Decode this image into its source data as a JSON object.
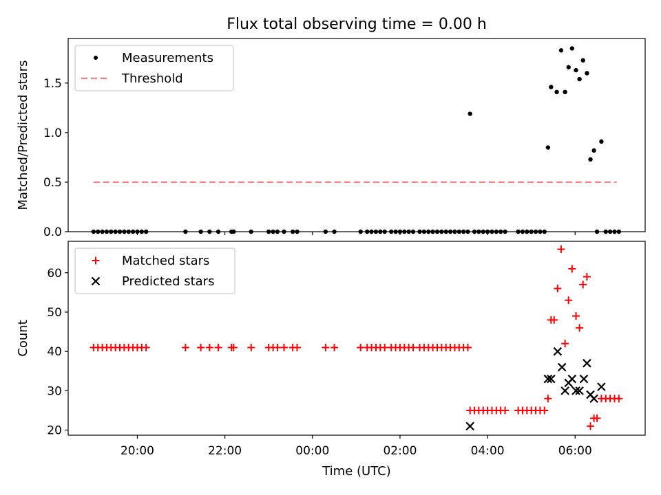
{
  "figure": {
    "title": "Flux total observing time = 0.00 h",
    "xlabel": "Time (UTC)",
    "x_tick_labels": [
      "20:00",
      "22:00",
      "00:00",
      "02:00",
      "04:00",
      "06:00"
    ],
    "x_tick_hours": [
      20,
      22,
      24,
      26,
      28,
      30
    ]
  },
  "chart_data": [
    {
      "type": "scatter",
      "panel": "top",
      "ylabel": "Matched/Predicted stars",
      "ylim": [
        0,
        1.95
      ],
      "xlim_hours": [
        18.42,
        31.6
      ],
      "y_ticks": [
        0.0,
        0.5,
        1.0,
        1.5
      ],
      "y_tick_labels": [
        "0.0",
        "0.5",
        "1.0",
        "1.5"
      ],
      "legend": {
        "placement": "upper-left",
        "entries": [
          "Measurements",
          "Threshold"
        ]
      },
      "series": [
        {
          "name": "Measurements",
          "marker": "dot",
          "color": "#000000",
          "points": [
            [
              19.0,
              0
            ],
            [
              19.1,
              0
            ],
            [
              19.2,
              0
            ],
            [
              19.3,
              0
            ],
            [
              19.4,
              0
            ],
            [
              19.5,
              0
            ],
            [
              19.6,
              0
            ],
            [
              19.7,
              0
            ],
            [
              19.8,
              0
            ],
            [
              19.9,
              0
            ],
            [
              20.0,
              0
            ],
            [
              20.1,
              0
            ],
            [
              20.2,
              0
            ],
            [
              21.1,
              0
            ],
            [
              21.45,
              0
            ],
            [
              21.65,
              0
            ],
            [
              21.85,
              0
            ],
            [
              22.15,
              0
            ],
            [
              22.2,
              0
            ],
            [
              22.6,
              0
            ],
            [
              23.0,
              0
            ],
            [
              23.1,
              0
            ],
            [
              23.2,
              0
            ],
            [
              23.35,
              0
            ],
            [
              23.55,
              0
            ],
            [
              23.65,
              0
            ],
            [
              24.3,
              0
            ],
            [
              24.5,
              0
            ],
            [
              25.1,
              0
            ],
            [
              25.25,
              0
            ],
            [
              25.35,
              0
            ],
            [
              25.45,
              0
            ],
            [
              25.55,
              0
            ],
            [
              25.65,
              0
            ],
            [
              25.8,
              0
            ],
            [
              25.9,
              0
            ],
            [
              26.0,
              0
            ],
            [
              26.1,
              0
            ],
            [
              26.2,
              0
            ],
            [
              26.3,
              0
            ],
            [
              26.45,
              0
            ],
            [
              26.55,
              0
            ],
            [
              26.65,
              0
            ],
            [
              26.75,
              0
            ],
            [
              26.85,
              0
            ],
            [
              26.95,
              0
            ],
            [
              27.05,
              0
            ],
            [
              27.15,
              0
            ],
            [
              27.25,
              0
            ],
            [
              27.35,
              0
            ],
            [
              27.45,
              0
            ],
            [
              27.55,
              0
            ],
            [
              27.6,
              1.19
            ],
            [
              27.7,
              0
            ],
            [
              27.8,
              0
            ],
            [
              27.9,
              0
            ],
            [
              28.0,
              0
            ],
            [
              28.1,
              0
            ],
            [
              28.2,
              0
            ],
            [
              28.3,
              0
            ],
            [
              28.4,
              0
            ],
            [
              28.7,
              0
            ],
            [
              28.8,
              0
            ],
            [
              28.9,
              0
            ],
            [
              29.0,
              0
            ],
            [
              29.1,
              0
            ],
            [
              29.2,
              0
            ],
            [
              29.3,
              0
            ],
            [
              29.38,
              0.85
            ],
            [
              29.45,
              1.46
            ],
            [
              29.58,
              1.41
            ],
            [
              29.68,
              1.83
            ],
            [
              29.77,
              1.41
            ],
            [
              29.85,
              1.66
            ],
            [
              29.93,
              1.85
            ],
            [
              30.02,
              1.63
            ],
            [
              30.1,
              1.54
            ],
            [
              30.18,
              1.73
            ],
            [
              30.27,
              1.6
            ],
            [
              30.35,
              0.73
            ],
            [
              30.43,
              0.82
            ],
            [
              30.6,
              0.91
            ],
            [
              30.5,
              0
            ],
            [
              30.7,
              0
            ],
            [
              30.8,
              0
            ],
            [
              30.9,
              0
            ],
            [
              31.0,
              0
            ]
          ]
        },
        {
          "name": "Threshold",
          "style": "dashed",
          "color": "#ff7f7f",
          "x": [
            19.0,
            30.95
          ],
          "y": [
            0.5,
            0.5
          ]
        }
      ]
    },
    {
      "type": "scatter",
      "panel": "bottom",
      "ylabel": "Count",
      "ylim": [
        18.7,
        68
      ],
      "xlim_hours": [
        18.42,
        31.6
      ],
      "y_ticks": [
        20,
        30,
        40,
        50,
        60
      ],
      "y_tick_labels": [
        "20",
        "30",
        "40",
        "50",
        "60"
      ],
      "legend": {
        "placement": "upper-left",
        "entries": [
          "Matched stars",
          "Predicted stars"
        ]
      },
      "series": [
        {
          "name": "Matched stars",
          "marker": "plus",
          "color": "#ff0000",
          "points": [
            [
              19.0,
              41
            ],
            [
              19.1,
              41
            ],
            [
              19.2,
              41
            ],
            [
              19.3,
              41
            ],
            [
              19.4,
              41
            ],
            [
              19.5,
              41
            ],
            [
              19.6,
              41
            ],
            [
              19.7,
              41
            ],
            [
              19.8,
              41
            ],
            [
              19.9,
              41
            ],
            [
              20.0,
              41
            ],
            [
              20.1,
              41
            ],
            [
              20.2,
              41
            ],
            [
              21.1,
              41
            ],
            [
              21.45,
              41
            ],
            [
              21.65,
              41
            ],
            [
              21.85,
              41
            ],
            [
              22.15,
              41
            ],
            [
              22.2,
              41
            ],
            [
              22.6,
              41
            ],
            [
              23.0,
              41
            ],
            [
              23.1,
              41
            ],
            [
              23.2,
              41
            ],
            [
              23.35,
              41
            ],
            [
              23.55,
              41
            ],
            [
              23.65,
              41
            ],
            [
              24.3,
              41
            ],
            [
              24.5,
              41
            ],
            [
              25.1,
              41
            ],
            [
              25.25,
              41
            ],
            [
              25.35,
              41
            ],
            [
              25.45,
              41
            ],
            [
              25.55,
              41
            ],
            [
              25.65,
              41
            ],
            [
              25.8,
              41
            ],
            [
              25.9,
              41
            ],
            [
              26.0,
              41
            ],
            [
              26.1,
              41
            ],
            [
              26.2,
              41
            ],
            [
              26.3,
              41
            ],
            [
              26.45,
              41
            ],
            [
              26.55,
              41
            ],
            [
              26.65,
              41
            ],
            [
              26.75,
              41
            ],
            [
              26.85,
              41
            ],
            [
              26.95,
              41
            ],
            [
              27.05,
              41
            ],
            [
              27.15,
              41
            ],
            [
              27.25,
              41
            ],
            [
              27.35,
              41
            ],
            [
              27.45,
              41
            ],
            [
              27.55,
              41
            ],
            [
              27.6,
              25
            ],
            [
              27.7,
              25
            ],
            [
              27.8,
              25
            ],
            [
              27.9,
              25
            ],
            [
              28.0,
              25
            ],
            [
              28.1,
              25
            ],
            [
              28.2,
              25
            ],
            [
              28.3,
              25
            ],
            [
              28.4,
              25
            ],
            [
              28.7,
              25
            ],
            [
              28.8,
              25
            ],
            [
              28.9,
              25
            ],
            [
              29.0,
              25
            ],
            [
              29.1,
              25
            ],
            [
              29.2,
              25
            ],
            [
              29.3,
              25
            ],
            [
              29.38,
              28
            ],
            [
              29.45,
              48
            ],
            [
              29.52,
              48
            ],
            [
              29.6,
              56
            ],
            [
              29.68,
              66
            ],
            [
              29.77,
              42
            ],
            [
              29.85,
              53
            ],
            [
              29.93,
              61
            ],
            [
              30.02,
              49
            ],
            [
              30.1,
              46
            ],
            [
              30.18,
              57
            ],
            [
              30.27,
              59
            ],
            [
              30.35,
              21
            ],
            [
              30.43,
              23
            ],
            [
              30.5,
              23
            ],
            [
              30.6,
              28
            ],
            [
              30.7,
              28
            ],
            [
              30.8,
              28
            ],
            [
              30.9,
              28
            ],
            [
              31.0,
              28
            ]
          ]
        },
        {
          "name": "Predicted stars",
          "marker": "x",
          "color": "#000000",
          "points": [
            [
              27.6,
              21
            ],
            [
              29.38,
              33
            ],
            [
              29.45,
              33
            ],
            [
              29.6,
              40
            ],
            [
              29.7,
              36
            ],
            [
              29.77,
              30
            ],
            [
              29.85,
              32
            ],
            [
              29.93,
              33
            ],
            [
              30.02,
              30
            ],
            [
              30.1,
              30
            ],
            [
              30.2,
              33
            ],
            [
              30.27,
              37
            ],
            [
              30.35,
              29
            ],
            [
              30.43,
              28
            ],
            [
              30.6,
              31
            ]
          ]
        }
      ]
    }
  ]
}
